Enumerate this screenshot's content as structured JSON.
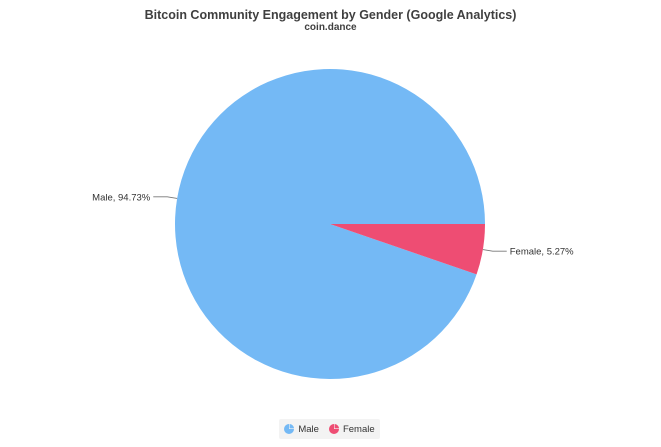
{
  "chart_data": {
    "type": "pie",
    "title": "Bitcoin Community Engagement by Gender (Google Analytics)",
    "subtitle": "coin.dance",
    "slices": [
      {
        "label": "Male",
        "value": 94.73,
        "color": "#74b9f5",
        "display": "Male, 94.73%"
      },
      {
        "label": "Female",
        "value": 5.27,
        "color": "#ee4d73",
        "display": "Female, 5.27%"
      }
    ],
    "legend": {
      "placement": "bottom",
      "entries": [
        "Male",
        "Female"
      ]
    }
  }
}
